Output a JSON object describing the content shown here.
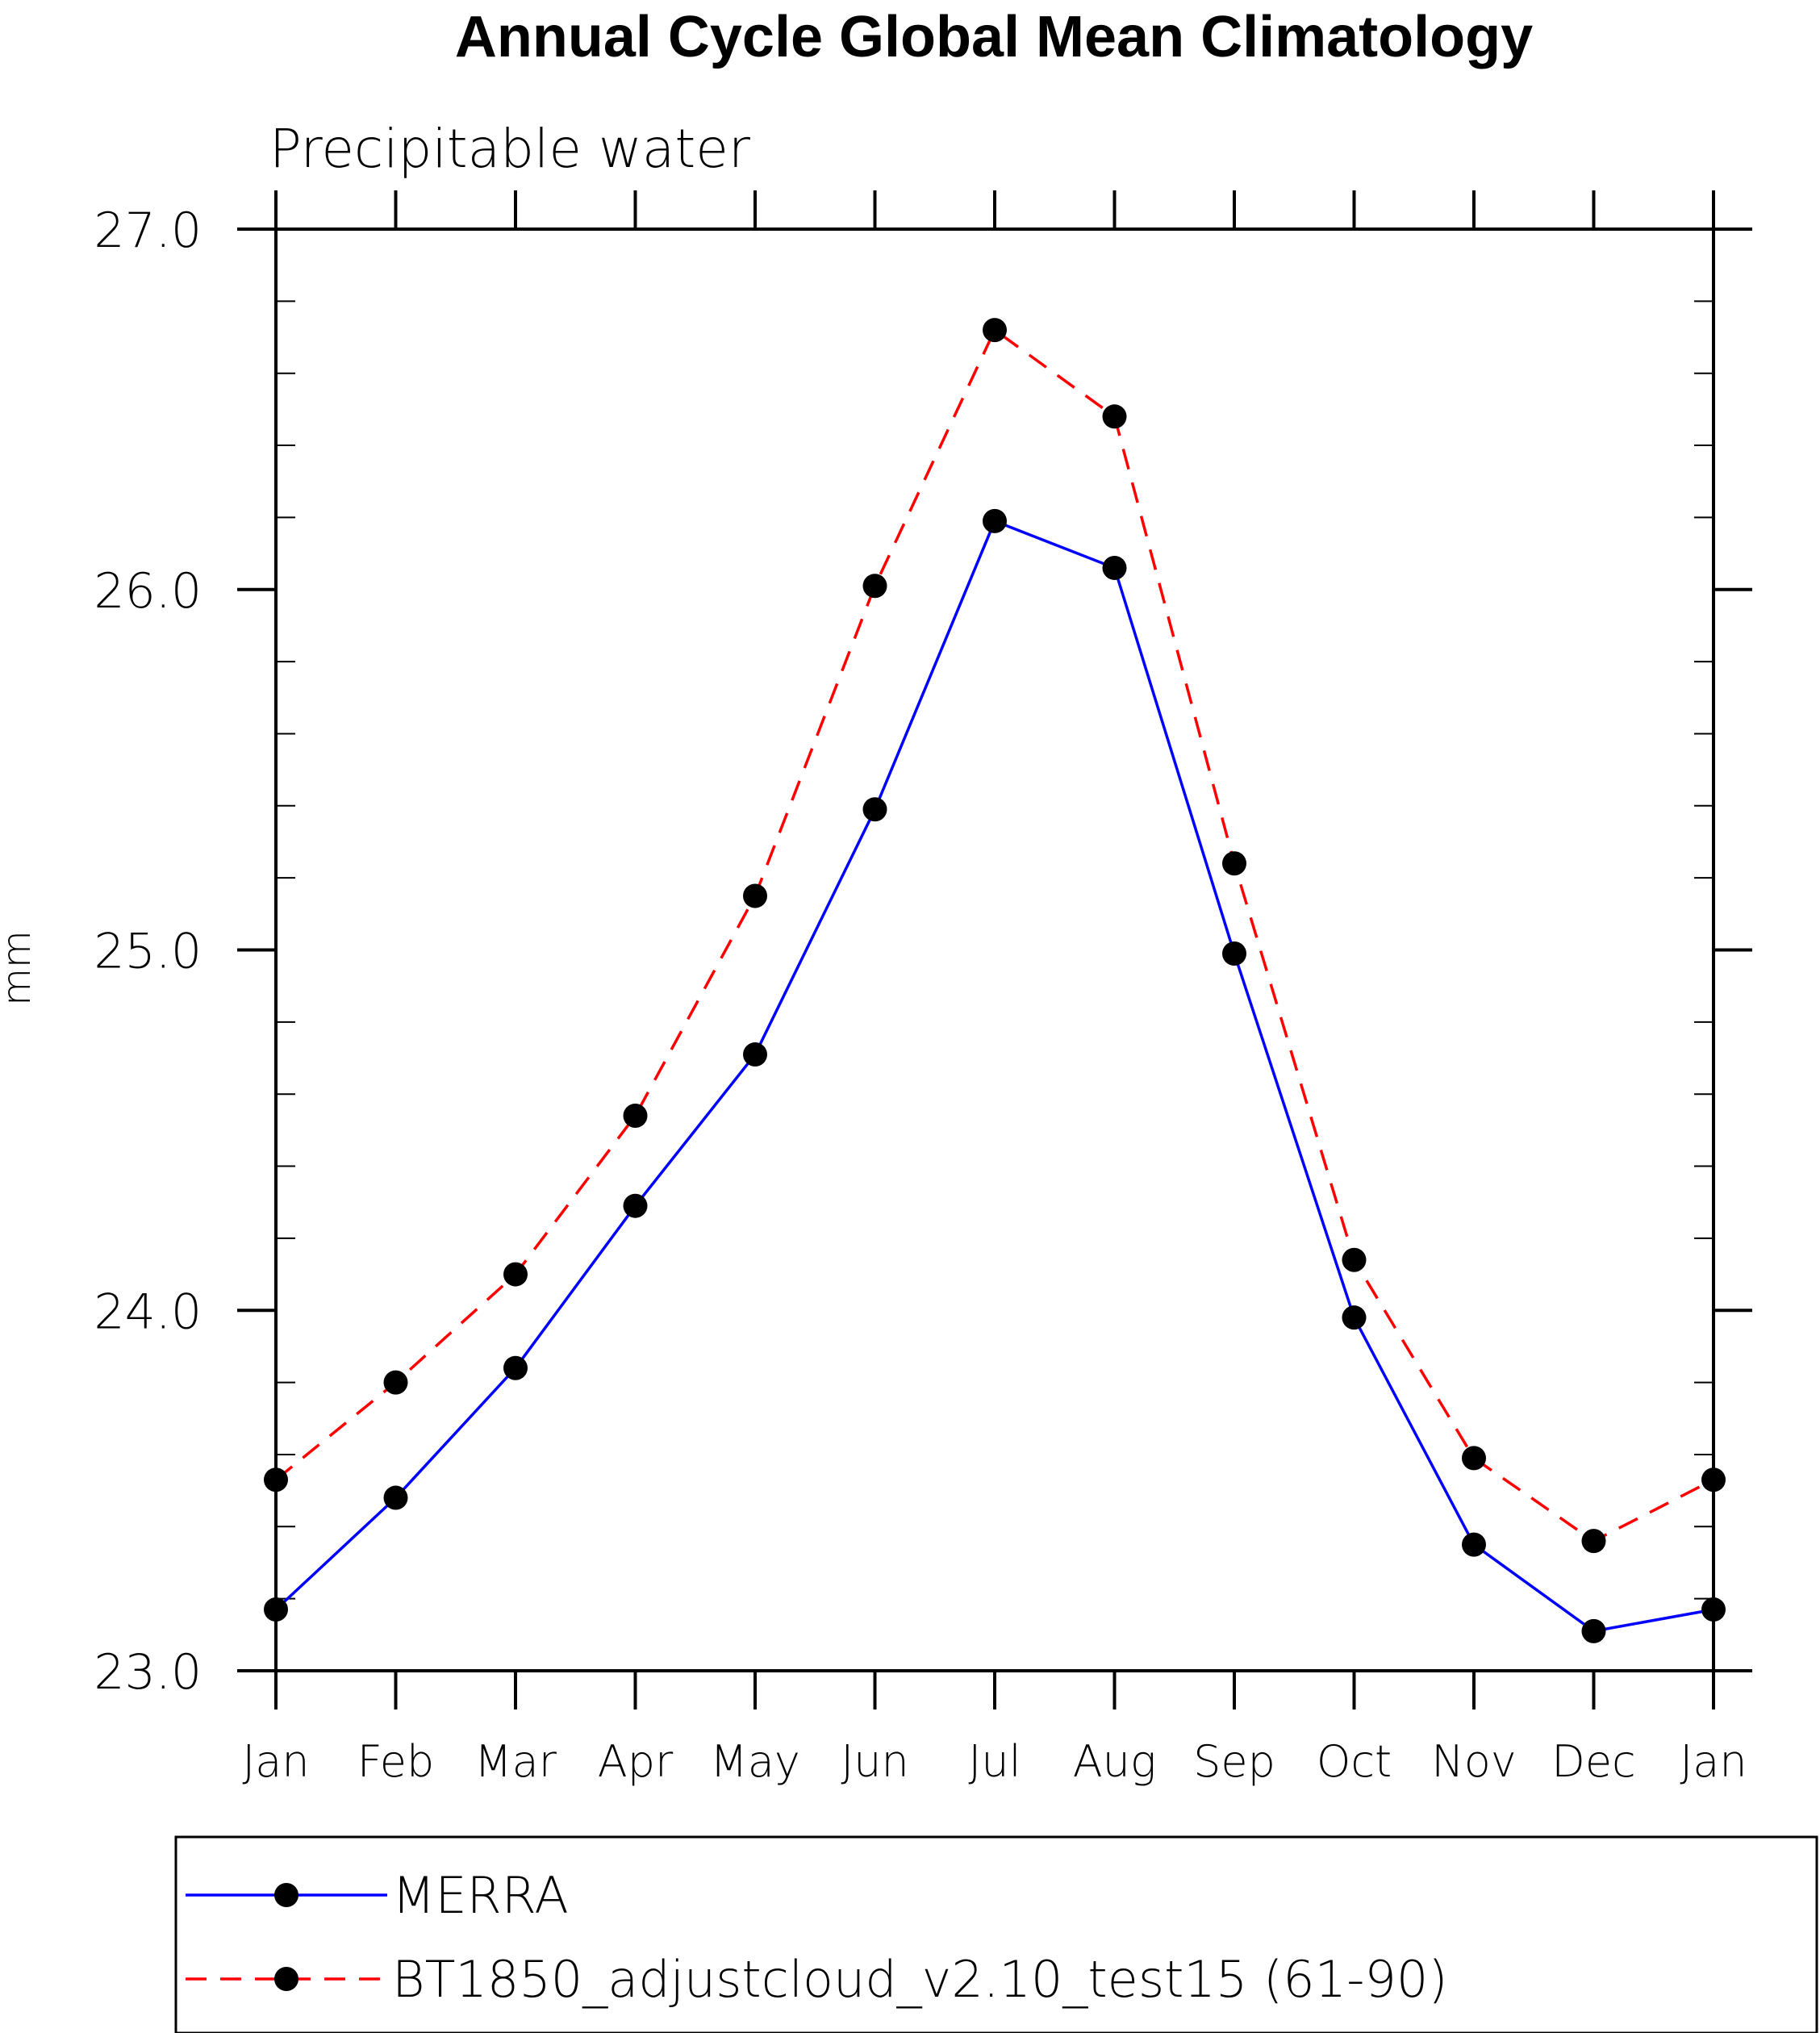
{
  "chart_data": {
    "type": "line",
    "title": "Annual Cycle Global Mean Climatology",
    "subtitle": "Precipitable water",
    "ylabel": "mm",
    "xlabel": "",
    "categories": [
      "Jan",
      "Feb",
      "Mar",
      "Apr",
      "May",
      "Jun",
      "Jul",
      "Aug",
      "Sep",
      "Oct",
      "Nov",
      "Dec",
      "Jan"
    ],
    "ylim": [
      23.0,
      27.0
    ],
    "yticks": [
      "23.0",
      "24.0",
      "25.0",
      "26.0",
      "27.0"
    ],
    "grid": false,
    "legend_position": "bottom",
    "series": [
      {
        "name": "MERRA",
        "color": "#0000ff",
        "line_style": "solid",
        "marker": "filled-circle",
        "values": [
          23.17,
          23.48,
          23.84,
          24.29,
          24.71,
          25.39,
          26.19,
          26.06,
          24.99,
          23.98,
          23.35,
          23.11,
          23.17
        ]
      },
      {
        "name": "BT1850_adjustcloud_v2.10_test15 (61-90)",
        "color": "#ff0000",
        "line_style": "dashed",
        "marker": "filled-circle",
        "values": [
          23.53,
          23.8,
          24.1,
          24.54,
          25.15,
          26.01,
          26.72,
          26.48,
          25.24,
          24.14,
          23.59,
          23.36,
          23.53
        ]
      }
    ]
  }
}
